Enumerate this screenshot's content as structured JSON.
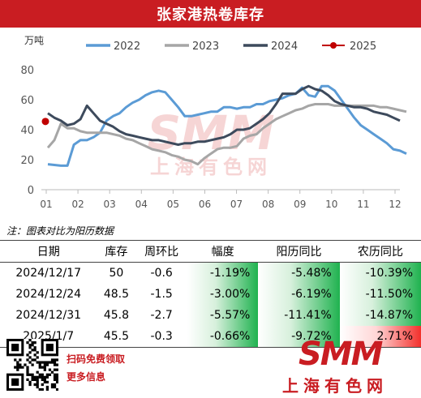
{
  "title": "张家港热卷库存",
  "chart_data": {
    "type": "line",
    "y_unit": "万吨",
    "x_labels": [
      "01",
      "02",
      "03",
      "04",
      "05",
      "06",
      "07",
      "08",
      "09",
      "10",
      "11",
      "12"
    ],
    "ylim": [
      0,
      80
    ],
    "yticks": [
      0,
      20,
      40,
      60,
      80
    ],
    "watermark": "SMM 上海有色网",
    "series": [
      {
        "name": "2022",
        "color": "#5b9bd5",
        "marker": "none",
        "values": [
          17,
          16.5,
          16,
          16,
          30,
          33,
          33,
          35,
          38,
          46,
          49,
          51,
          55,
          58,
          60,
          63,
          65,
          66,
          65,
          60,
          55,
          49,
          49,
          50,
          51,
          52,
          52,
          55,
          55,
          54,
          55,
          55,
          57,
          57,
          59,
          60,
          61,
          63,
          64,
          68,
          63,
          62,
          69,
          69,
          66,
          60,
          54,
          48,
          43,
          40,
          37,
          34,
          31,
          27,
          26,
          24
        ]
      },
      {
        "name": "2023",
        "color": "#a6a6a6",
        "marker": "none",
        "values": [
          28,
          33,
          44,
          41,
          41,
          39,
          38,
          38,
          38,
          38,
          37,
          36,
          34,
          33,
          31,
          29,
          27,
          26,
          25,
          23,
          22,
          20,
          19,
          17,
          21,
          24,
          27,
          28,
          28,
          29,
          34,
          36,
          37,
          41,
          44,
          47,
          49,
          51,
          53,
          54,
          56,
          57,
          57,
          57,
          56,
          56,
          56,
          56,
          56,
          56,
          56,
          55,
          55,
          54,
          53,
          52
        ]
      },
      {
        "name": "2024",
        "color": "#3d4a5c",
        "marker": "none",
        "values": [
          51,
          48,
          46,
          43,
          44,
          47,
          56,
          51,
          46,
          44,
          42,
          39,
          37,
          36,
          35,
          34,
          33,
          33,
          32,
          31,
          30,
          31,
          31,
          32,
          32,
          33,
          34,
          35,
          37,
          40,
          40,
          41,
          44,
          47,
          51,
          57,
          64,
          64,
          64,
          67,
          69,
          67,
          66,
          63,
          59,
          57,
          56,
          55,
          55,
          54,
          52,
          51,
          50,
          48,
          46
        ]
      },
      {
        "name": "2025",
        "color": "#c00000",
        "marker": "dot",
        "values": [
          45.5
        ]
      }
    ]
  },
  "note": "注：图表对比为阳历数据",
  "table": {
    "headers": [
      "日期",
      "库存",
      "周环比",
      "幅度",
      "阳历同比",
      "农历同比"
    ],
    "rows": [
      {
        "date": "2024/12/17",
        "stock": "50",
        "wow": "-0.6",
        "range": "-1.19%",
        "solar": "-5.48%",
        "lunar": "-10.39%",
        "c_range": "g",
        "c_solar": "g",
        "c_lunar": "g"
      },
      {
        "date": "2024/12/24",
        "stock": "48.5",
        "wow": "-1.5",
        "range": "-3.00%",
        "solar": "-6.19%",
        "lunar": "-11.50%",
        "c_range": "g",
        "c_solar": "g",
        "c_lunar": "g"
      },
      {
        "date": "2024/12/31",
        "stock": "45.8",
        "wow": "-2.7",
        "range": "-5.57%",
        "solar": "-11.41%",
        "lunar": "-14.87%",
        "c_range": "g",
        "c_solar": "g",
        "c_lunar": "g"
      },
      {
        "date": "2025/1/7",
        "stock": "45.5",
        "wow": "-0.3",
        "range": "-0.66%",
        "solar": "-9.72%",
        "lunar": "2.71%",
        "c_range": "g",
        "c_solar": "g",
        "c_lunar": "r"
      }
    ]
  },
  "footer": {
    "cta1": "扫码免费领取",
    "cta2": "更多信息",
    "logo_big": "SMM",
    "logo_cn": "上海有色网"
  }
}
